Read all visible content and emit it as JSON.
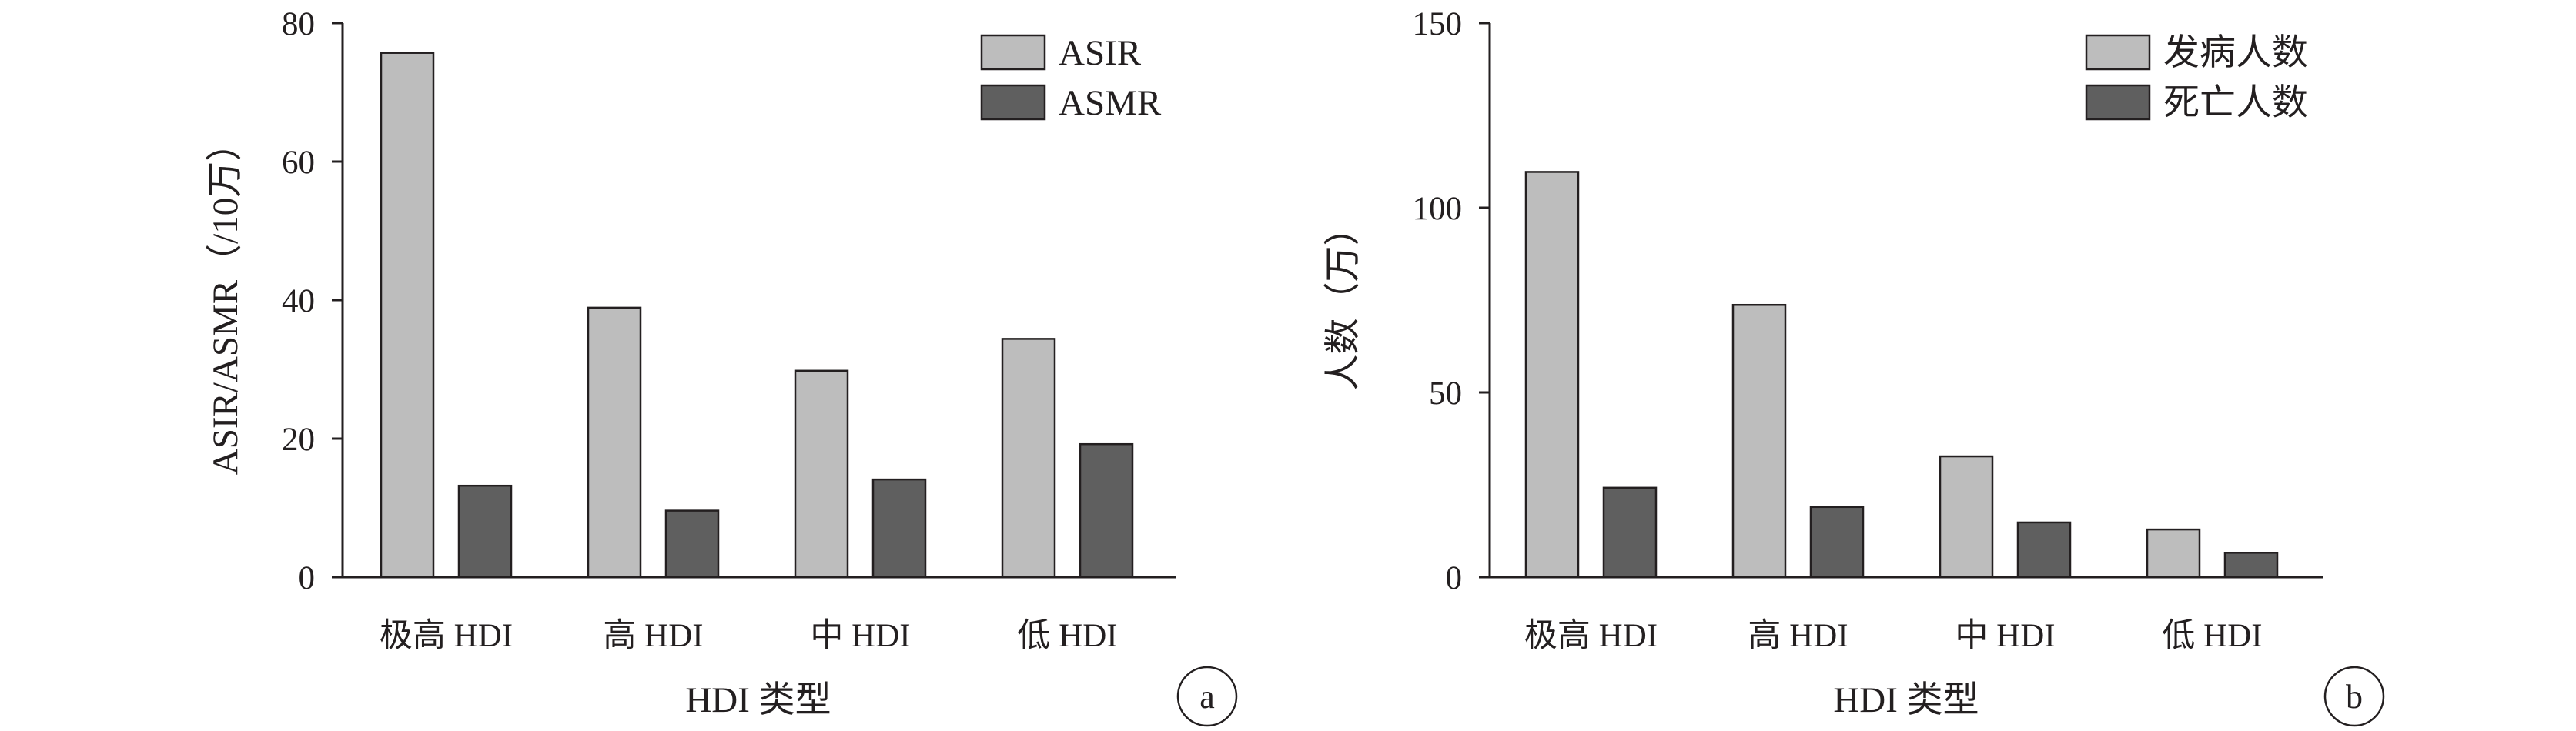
{
  "colors": {
    "series1": "#bdbdbd",
    "series2": "#5f5f5f",
    "axis": "#231f20",
    "background": "#ffffff"
  },
  "chart_data": [
    {
      "type": "bar",
      "panel_label": "a",
      "categories": [
        "极高 HDI",
        "高 HDI",
        "中 HDI",
        "低 HDI"
      ],
      "series": [
        {
          "name": "ASIR",
          "values": [
            75.7,
            38.9,
            29.8,
            34.4
          ]
        },
        {
          "name": "ASMR",
          "values": [
            13.2,
            9.6,
            14.1,
            19.2
          ]
        }
      ],
      "xlabel": "HDI 类型",
      "ylabel": "ASIR/ASMR（/10万）",
      "ylim": [
        0,
        80
      ],
      "yticks": [
        0,
        20,
        40,
        60,
        80
      ],
      "legend_position": "top-right",
      "grid": false
    },
    {
      "type": "bar",
      "panel_label": "b",
      "categories": [
        "极高 HDI",
        "高 HDI",
        "中 HDI",
        "低 HDI"
      ],
      "series": [
        {
          "name": "发病人数",
          "values": [
            109.7,
            73.7,
            32.7,
            12.9
          ]
        },
        {
          "name": "死亡人数",
          "values": [
            24.2,
            19.0,
            14.8,
            6.6
          ]
        }
      ],
      "xlabel": "HDI 类型",
      "ylabel": "人数（万）",
      "ylim": [
        0,
        150
      ],
      "yticks": [
        0,
        50,
        100,
        150
      ],
      "legend_position": "top-right",
      "grid": false
    }
  ]
}
